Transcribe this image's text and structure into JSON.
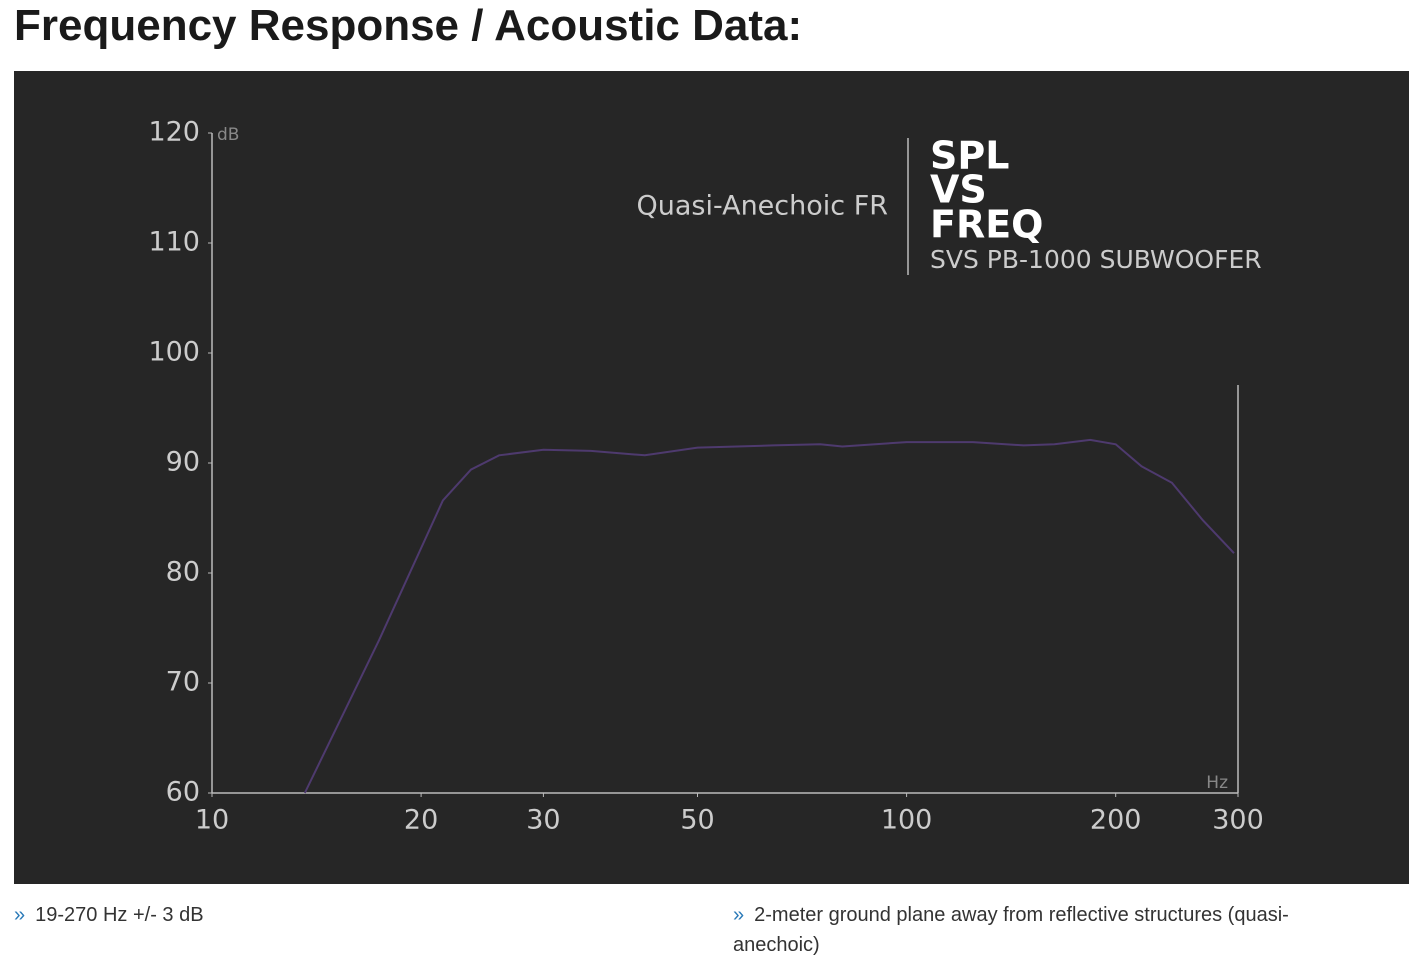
{
  "heading": "Frequency Response / Acoustic Data:",
  "chart_data": {
    "type": "line",
    "xscale": "log",
    "color": "#4e3a6e",
    "xlabel": "Hz",
    "ylabel": "dB",
    "annotations": [
      "Quasi-Anechoic FR",
      "SPL",
      "VS",
      "FREQ",
      "SVS PB-1000 SUBWOOFER"
    ],
    "x": [
      13.6,
      17.4,
      21.5,
      23.6,
      25.9,
      30,
      35.1,
      42,
      50,
      64.2,
      75.1,
      80.8,
      100,
      124.6,
      147.5,
      163.3,
      183.8,
      200,
      217.9,
      241,
      267,
      296
    ],
    "values": [
      60,
      73.9,
      86.6,
      89.4,
      90.7,
      91.2,
      91.1,
      90.7,
      91.4,
      91.6,
      91.7,
      91.5,
      91.9,
      91.9,
      91.6,
      91.7,
      92.1,
      91.7,
      89.7,
      88.2,
      84.8,
      81.8
    ],
    "xlim": [
      10,
      300
    ],
    "ylim": [
      60,
      120
    ],
    "xticks": [
      10,
      20,
      30,
      50,
      100,
      200,
      300
    ],
    "yticks": [
      60,
      70,
      80,
      90,
      100,
      110,
      120
    ]
  },
  "notes": [
    "19-270 Hz +/- 3 dB",
    "2-meter ground plane away from reflective structures (quasi-anechoic)"
  ]
}
